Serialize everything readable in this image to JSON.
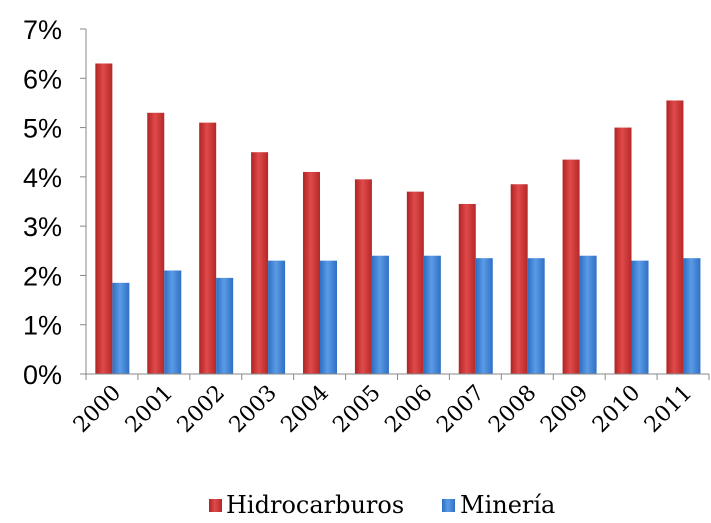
{
  "chart_data": {
    "type": "bar",
    "categories": [
      "2000",
      "2001",
      "2002",
      "2003",
      "2004",
      "2005",
      "2006",
      "2007",
      "2008",
      "2009",
      "2010",
      "2011"
    ],
    "series": [
      {
        "name": "Hidrocarburos",
        "color": "#cc3333",
        "values": [
          6.3,
          5.3,
          5.1,
          4.5,
          4.1,
          3.95,
          3.7,
          3.45,
          3.85,
          4.35,
          5.0,
          5.55
        ]
      },
      {
        "name": "Minería",
        "color": "#3a7fd0",
        "values": [
          1.85,
          2.1,
          1.95,
          2.3,
          2.3,
          2.4,
          2.4,
          2.35,
          2.35,
          2.4,
          2.3,
          2.35
        ]
      }
    ],
    "y_ticks": [
      "0%",
      "1%",
      "2%",
      "3%",
      "4%",
      "5%",
      "6%",
      "7%"
    ],
    "ylim": [
      0,
      7
    ],
    "grid": false,
    "legend_position": "bottom"
  }
}
